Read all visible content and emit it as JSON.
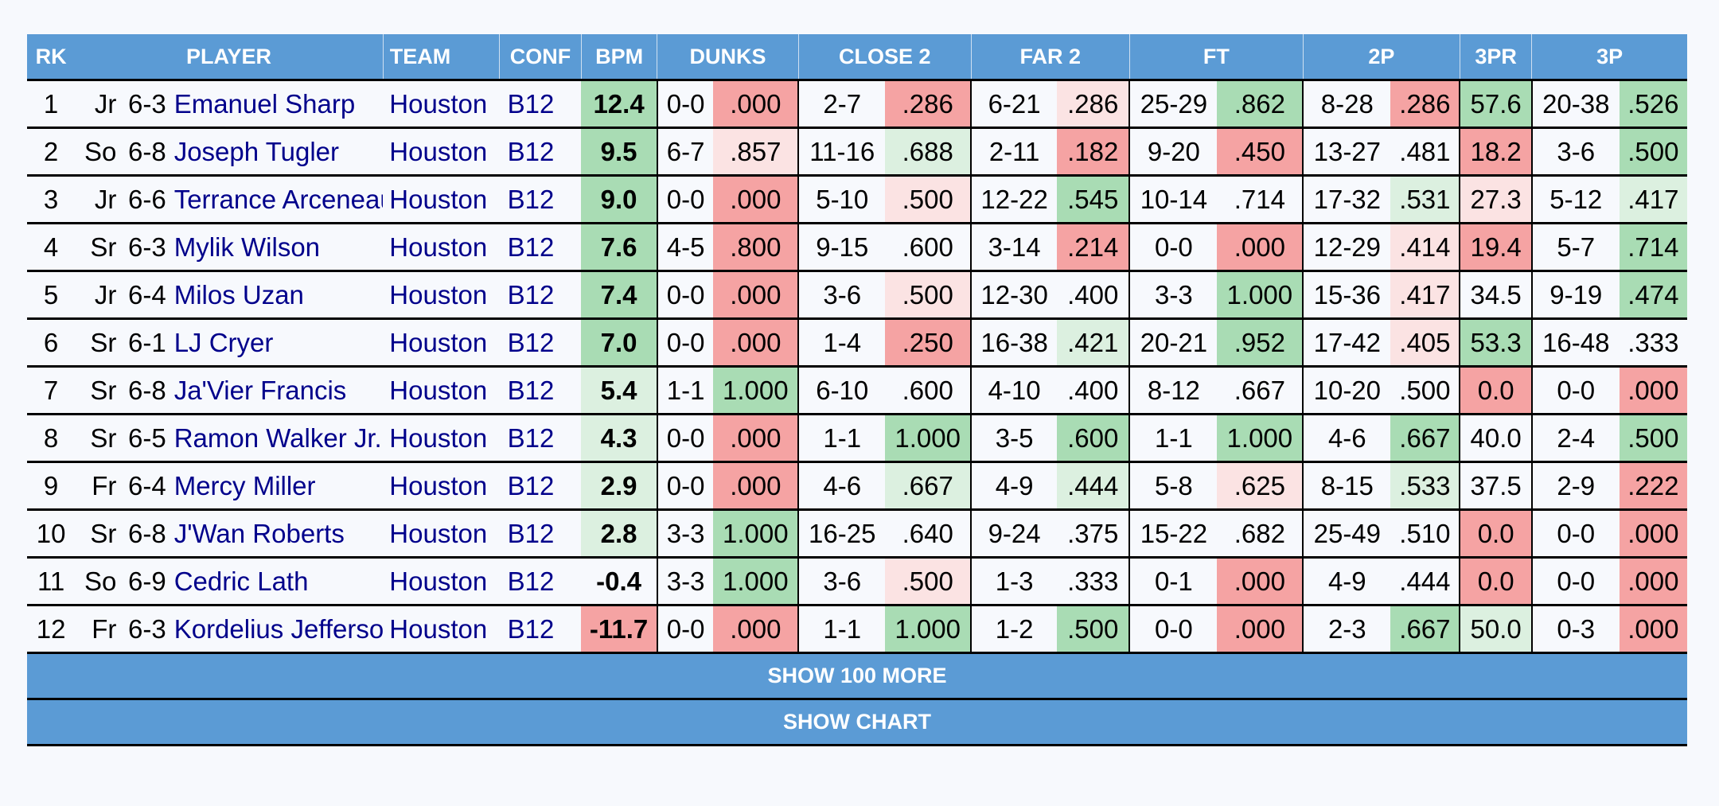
{
  "headers": {
    "rk": "RK",
    "player": "PLAYER",
    "team": "TEAM",
    "conf": "CONF",
    "bpm": "BPM",
    "dunks": "DUNKS",
    "close2": "CLOSE 2",
    "far2": "FAR 2",
    "ft": "FT",
    "twop": "2P",
    "threepr": "3PR",
    "threep": "3P"
  },
  "colors": {
    "header_bg": "#5b9bd5",
    "player_link": "#00008b",
    "green_strong": "#a9dcb4",
    "green_light": "#dcf0e0",
    "red_strong": "#f5a3a3",
    "red_light": "#fbe3e3"
  },
  "rows": [
    {
      "rk": "1",
      "cls": "Jr",
      "ht": "6-3",
      "player": "Emanuel Sharp",
      "team": "Houston",
      "conf": "B12",
      "bpm": "12.4",
      "dunks_m": "0-0",
      "dunks_p": ".000",
      "close2_m": "2-7",
      "close2_p": ".286",
      "far2_m": "6-21",
      "far2_p": ".286",
      "ft_m": "25-29",
      "ft_p": ".862",
      "twop_m": "8-28",
      "twop_p": ".286",
      "threepr": "57.6",
      "threep_m": "20-38",
      "threep_p": ".526"
    },
    {
      "rk": "2",
      "cls": "So",
      "ht": "6-8",
      "player": "Joseph Tugler",
      "team": "Houston",
      "conf": "B12",
      "bpm": "9.5",
      "dunks_m": "6-7",
      "dunks_p": ".857",
      "close2_m": "11-16",
      "close2_p": ".688",
      "far2_m": "2-11",
      "far2_p": ".182",
      "ft_m": "9-20",
      "ft_p": ".450",
      "twop_m": "13-27",
      "twop_p": ".481",
      "threepr": "18.2",
      "threep_m": "3-6",
      "threep_p": ".500"
    },
    {
      "rk": "3",
      "cls": "Jr",
      "ht": "6-6",
      "player": "Terrance Arceneaux",
      "team": "Houston",
      "conf": "B12",
      "bpm": "9.0",
      "dunks_m": "0-0",
      "dunks_p": ".000",
      "close2_m": "5-10",
      "close2_p": ".500",
      "far2_m": "12-22",
      "far2_p": ".545",
      "ft_m": "10-14",
      "ft_p": ".714",
      "twop_m": "17-32",
      "twop_p": ".531",
      "threepr": "27.3",
      "threep_m": "5-12",
      "threep_p": ".417"
    },
    {
      "rk": "4",
      "cls": "Sr",
      "ht": "6-3",
      "player": "Mylik Wilson",
      "team": "Houston",
      "conf": "B12",
      "bpm": "7.6",
      "dunks_m": "4-5",
      "dunks_p": ".800",
      "close2_m": "9-15",
      "close2_p": ".600",
      "far2_m": "3-14",
      "far2_p": ".214",
      "ft_m": "0-0",
      "ft_p": ".000",
      "twop_m": "12-29",
      "twop_p": ".414",
      "threepr": "19.4",
      "threep_m": "5-7",
      "threep_p": ".714"
    },
    {
      "rk": "5",
      "cls": "Jr",
      "ht": "6-4",
      "player": "Milos Uzan",
      "team": "Houston",
      "conf": "B12",
      "bpm": "7.4",
      "dunks_m": "0-0",
      "dunks_p": ".000",
      "close2_m": "3-6",
      "close2_p": ".500",
      "far2_m": "12-30",
      "far2_p": ".400",
      "ft_m": "3-3",
      "ft_p": "1.000",
      "twop_m": "15-36",
      "twop_p": ".417",
      "threepr": "34.5",
      "threep_m": "9-19",
      "threep_p": ".474"
    },
    {
      "rk": "6",
      "cls": "Sr",
      "ht": "6-1",
      "player": "LJ Cryer",
      "team": "Houston",
      "conf": "B12",
      "bpm": "7.0",
      "dunks_m": "0-0",
      "dunks_p": ".000",
      "close2_m": "1-4",
      "close2_p": ".250",
      "far2_m": "16-38",
      "far2_p": ".421",
      "ft_m": "20-21",
      "ft_p": ".952",
      "twop_m": "17-42",
      "twop_p": ".405",
      "threepr": "53.3",
      "threep_m": "16-48",
      "threep_p": ".333"
    },
    {
      "rk": "7",
      "cls": "Sr",
      "ht": "6-8",
      "player": "Ja'Vier Francis",
      "team": "Houston",
      "conf": "B12",
      "bpm": "5.4",
      "dunks_m": "1-1",
      "dunks_p": "1.000",
      "close2_m": "6-10",
      "close2_p": ".600",
      "far2_m": "4-10",
      "far2_p": ".400",
      "ft_m": "8-12",
      "ft_p": ".667",
      "twop_m": "10-20",
      "twop_p": ".500",
      "threepr": "0.0",
      "threep_m": "0-0",
      "threep_p": ".000"
    },
    {
      "rk": "8",
      "cls": "Sr",
      "ht": "6-5",
      "player": "Ramon Walker Jr.",
      "team": "Houston",
      "conf": "B12",
      "bpm": "4.3",
      "dunks_m": "0-0",
      "dunks_p": ".000",
      "close2_m": "1-1",
      "close2_p": "1.000",
      "far2_m": "3-5",
      "far2_p": ".600",
      "ft_m": "1-1",
      "ft_p": "1.000",
      "twop_m": "4-6",
      "twop_p": ".667",
      "threepr": "40.0",
      "threep_m": "2-4",
      "threep_p": ".500"
    },
    {
      "rk": "9",
      "cls": "Fr",
      "ht": "6-4",
      "player": "Mercy Miller",
      "team": "Houston",
      "conf": "B12",
      "bpm": "2.9",
      "dunks_m": "0-0",
      "dunks_p": ".000",
      "close2_m": "4-6",
      "close2_p": ".667",
      "far2_m": "4-9",
      "far2_p": ".444",
      "ft_m": "5-8",
      "ft_p": ".625",
      "twop_m": "8-15",
      "twop_p": ".533",
      "threepr": "37.5",
      "threep_m": "2-9",
      "threep_p": ".222"
    },
    {
      "rk": "10",
      "cls": "Sr",
      "ht": "6-8",
      "player": "J'Wan Roberts",
      "team": "Houston",
      "conf": "B12",
      "bpm": "2.8",
      "dunks_m": "3-3",
      "dunks_p": "1.000",
      "close2_m": "16-25",
      "close2_p": ".640",
      "far2_m": "9-24",
      "far2_p": ".375",
      "ft_m": "15-22",
      "ft_p": ".682",
      "twop_m": "25-49",
      "twop_p": ".510",
      "threepr": "0.0",
      "threep_m": "0-0",
      "threep_p": ".000"
    },
    {
      "rk": "11",
      "cls": "So",
      "ht": "6-9",
      "player": "Cedric Lath",
      "team": "Houston",
      "conf": "B12",
      "bpm": "-0.4",
      "dunks_m": "3-3",
      "dunks_p": "1.000",
      "close2_m": "3-6",
      "close2_p": ".500",
      "far2_m": "1-3",
      "far2_p": ".333",
      "ft_m": "0-1",
      "ft_p": ".000",
      "twop_m": "4-9",
      "twop_p": ".444",
      "threepr": "0.0",
      "threep_m": "0-0",
      "threep_p": ".000"
    },
    {
      "rk": "12",
      "cls": "Fr",
      "ht": "6-3",
      "player": "Kordelius Jefferson",
      "team": "Houston",
      "conf": "B12",
      "bpm": "-11.7",
      "dunks_m": "0-0",
      "dunks_p": ".000",
      "close2_m": "1-1",
      "close2_p": "1.000",
      "far2_m": "1-2",
      "far2_p": ".500",
      "ft_m": "0-0",
      "ft_p": ".000",
      "twop_m": "2-3",
      "twop_p": ".667",
      "threepr": "50.0",
      "threep_m": "0-3",
      "threep_p": ".000"
    }
  ],
  "cell_colors": [
    {
      "bpm": "G",
      "dunks_p": "R",
      "close2_p": "R",
      "far2_p": "r",
      "ft_p": "G",
      "twop_p": "R",
      "threepr": "G",
      "threep_p": "G"
    },
    {
      "bpm": "G",
      "dunks_p": "r",
      "close2_p": "g",
      "far2_p": "R",
      "ft_p": "R",
      "twop_p": "",
      "threepr": "R",
      "threep_p": "G"
    },
    {
      "bpm": "G",
      "dunks_p": "R",
      "close2_p": "r",
      "far2_p": "G",
      "ft_p": "",
      "twop_p": "g",
      "threepr": "r",
      "threep_p": "g"
    },
    {
      "bpm": "G",
      "dunks_p": "R",
      "close2_p": "",
      "far2_p": "R",
      "ft_p": "R",
      "twop_p": "r",
      "threepr": "R",
      "threep_p": "G"
    },
    {
      "bpm": "G",
      "dunks_p": "R",
      "close2_p": "r",
      "far2_p": "",
      "ft_p": "G",
      "twop_p": "r",
      "threepr": "",
      "threep_p": "G"
    },
    {
      "bpm": "G",
      "dunks_p": "R",
      "close2_p": "R",
      "far2_p": "g",
      "ft_p": "G",
      "twop_p": "r",
      "threepr": "G",
      "threep_p": ""
    },
    {
      "bpm": "g",
      "dunks_p": "G",
      "close2_p": "",
      "far2_p": "",
      "ft_p": "",
      "twop_p": "",
      "threepr": "R",
      "threep_p": "R"
    },
    {
      "bpm": "g",
      "dunks_p": "R",
      "close2_p": "G",
      "far2_p": "G",
      "ft_p": "G",
      "twop_p": "G",
      "threepr": "",
      "threep_p": "G"
    },
    {
      "bpm": "g",
      "dunks_p": "R",
      "close2_p": "g",
      "far2_p": "g",
      "ft_p": "r",
      "twop_p": "g",
      "threepr": "",
      "threep_p": "R"
    },
    {
      "bpm": "g",
      "dunks_p": "G",
      "close2_p": "",
      "far2_p": "",
      "ft_p": "",
      "twop_p": "",
      "threepr": "R",
      "threep_p": "R"
    },
    {
      "bpm": "",
      "dunks_p": "G",
      "close2_p": "r",
      "far2_p": "",
      "ft_p": "R",
      "twop_p": "",
      "threepr": "R",
      "threep_p": "R"
    },
    {
      "bpm": "R",
      "dunks_p": "R",
      "close2_p": "G",
      "far2_p": "G",
      "ft_p": "R",
      "twop_p": "G",
      "threepr": "g",
      "threep_p": "R"
    }
  ],
  "buttons": {
    "show_more": "SHOW 100 MORE",
    "show_chart": "SHOW CHART"
  }
}
